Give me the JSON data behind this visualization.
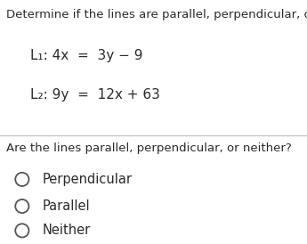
{
  "title": "Determine if the lines are parallel, perpendicular, or neith",
  "line1_prefix": "L₁: 4x  =  3y − 9",
  "line2_prefix": "L₂: 9y  =  12x + 63",
  "question": "Are the lines parallel, perpendicular, or neither?",
  "options": [
    "Perpendicular",
    "Parallel",
    "Neither"
  ],
  "bg_color": "#ffffff",
  "text_color": "#2a2a2a",
  "title_fontsize": 9.5,
  "equation_fontsize": 11.0,
  "question_fontsize": 9.5,
  "option_fontsize": 10.5,
  "divider_color": "#c0c0c0",
  "circle_color": "#555555"
}
